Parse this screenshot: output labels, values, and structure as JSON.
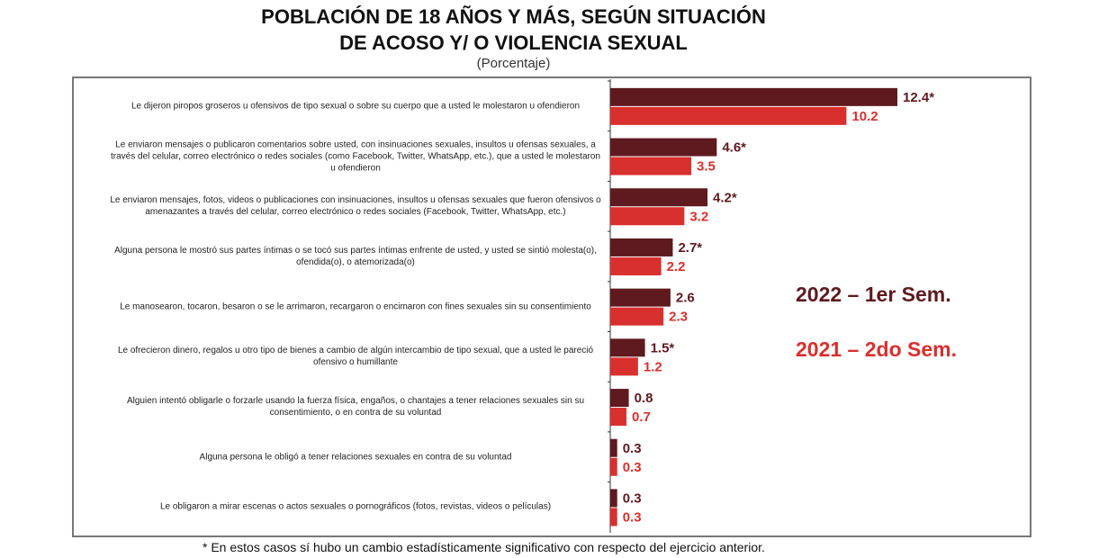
{
  "chart_data": {
    "type": "bar",
    "orientation": "horizontal",
    "title": [
      "POBLACIÓN DE 18 AÑOS Y MÁS, SEGÚN SITUACIÓN",
      "DE ACOSO Y/ O VIOLENCIA SEXUAL"
    ],
    "subtitle": "(Porcentaje)",
    "categories": [
      "Le dijeron piropos groseros u ofensivos de tipo sexual o sobre su cuerpo que a usted le molestaron u ofendieron",
      "Le enviaron mensajes o publicaron comentarios sobre usted, con insinuaciones sexuales, insultos u ofensas sexuales, a través del celular, correo electrónico o redes sociales (como Facebook, Twitter, WhatsApp, etc.), que a usted le molestaron u ofendieron",
      "Le enviaron mensajes, fotos, videos o publicaciones con insinuaciones, insultos u ofensas sexuales que fueron ofensivos o amenazantes a través del celular, correo electrónico o redes sociales (Facebook, Twitter, WhatsApp, etc.)",
      "Alguna persona le mostró sus partes íntimas o se tocó sus partes íntimas enfrente de usted, y usted se sintió molesta(o), ofendida(o), o atemorizada(o)",
      "Le manosearon, tocaron, besaron o se le arrimaron, recargaron o encimaron con fines sexuales sin su consentimiento",
      "Le ofrecieron dinero, regalos u otro tipo de bienes a cambio de algún intercambio de tipo sexual, que a usted le pareció ofensivo o humillante",
      "Alguien intentó obligarle o forzarle usando la fuerza física, engaños, o chantajes a tener relaciones sexuales sin su consentimiento, o en contra de su voluntad",
      "Alguna persona le obligó a tener relaciones sexuales en contra de su voluntad",
      "Le obligaron a mirar escenas o actos sexuales o pornográficos (fotos, revistas, videos o películas)"
    ],
    "series": [
      {
        "name": "2022 – 1er Sem.",
        "color": "#5e1a1f",
        "values": [
          12.4,
          4.6,
          4.2,
          2.7,
          2.6,
          1.5,
          0.8,
          0.3,
          0.3
        ],
        "labels": [
          "12.4*",
          "4.6*",
          "4.2*",
          "2.7*",
          "2.6",
          "1.5*",
          "0.8",
          "0.3",
          "0.3"
        ]
      },
      {
        "name": "2021 – 2do Sem.",
        "color": "#d8302e",
        "values": [
          10.2,
          3.5,
          3.2,
          2.2,
          2.3,
          1.2,
          0.7,
          0.3,
          0.3
        ],
        "labels": [
          "10.2",
          "3.5",
          "3.2",
          "2.2",
          "2.3",
          "1.2",
          "0.7",
          "0.3",
          "0.3"
        ]
      }
    ],
    "legend_position": "right",
    "grid": false,
    "xlim": [
      0,
      12.4
    ],
    "footnote": "*  En estos casos sí hubo un cambio estadísticamente significativo con respecto del ejercicio anterior."
  }
}
